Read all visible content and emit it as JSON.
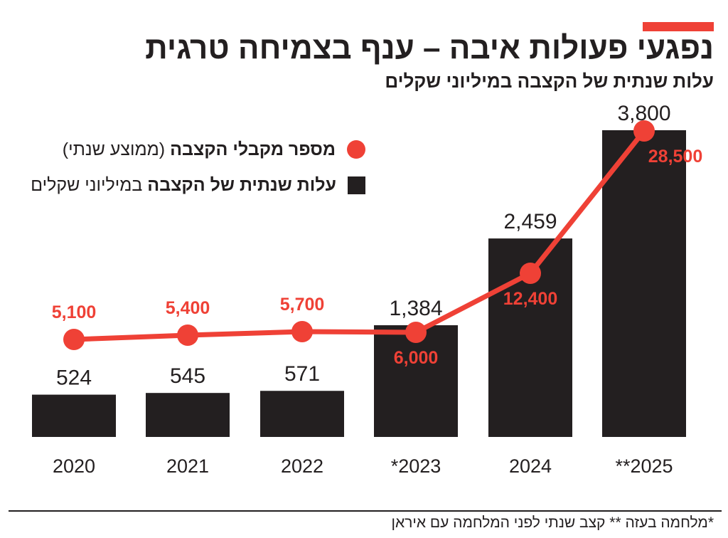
{
  "header": {
    "title": "נפגעי פעולות איבה – ענף בצמיחה טרגית",
    "subtitle": "עלות שנתית של הקצבה במיליוני שקלים"
  },
  "legend": {
    "line_label_bold": "מספר מקבלי הקצבה",
    "line_label_rest": " (ממוצע שנתי)",
    "bar_label_bold": "עלות שנתית של הקצבה",
    "bar_label_rest": " במיליוני שקלים"
  },
  "footnote": "*מלחמה בעזה ** קצב שנתי לפני המלחמה עם איראן",
  "colors": {
    "accent": "#ef4136",
    "bar": "#231f20",
    "line": "#ef4136",
    "text": "#231f20"
  },
  "chart_data": {
    "type": "bar",
    "categories": [
      "2020",
      "2021",
      "2022",
      "*2023",
      "2024",
      "**2025"
    ],
    "series": [
      {
        "name": "עלות שנתית של הקצבה במיליוני שקלים",
        "kind": "bar",
        "values": [
          524,
          545,
          571,
          1384,
          2459,
          3800
        ],
        "labels": [
          "524",
          "545",
          "571",
          "1,384",
          "2,459",
          "3,800"
        ]
      },
      {
        "name": "מספר מקבלי הקצבה (ממוצע שנתי)",
        "kind": "line",
        "values": [
          5100,
          5400,
          5700,
          6000,
          12400,
          28500
        ],
        "labels": [
          "5,100",
          "5,400",
          "5,700",
          "6,000",
          "12,400",
          "28,500"
        ]
      }
    ],
    "title": "נפגעי פעולות איבה – ענף בצמיחה טרגית",
    "subtitle": "עלות שנתית של הקצבה במיליוני שקלים",
    "grid": false,
    "legend_position": "top-left"
  }
}
